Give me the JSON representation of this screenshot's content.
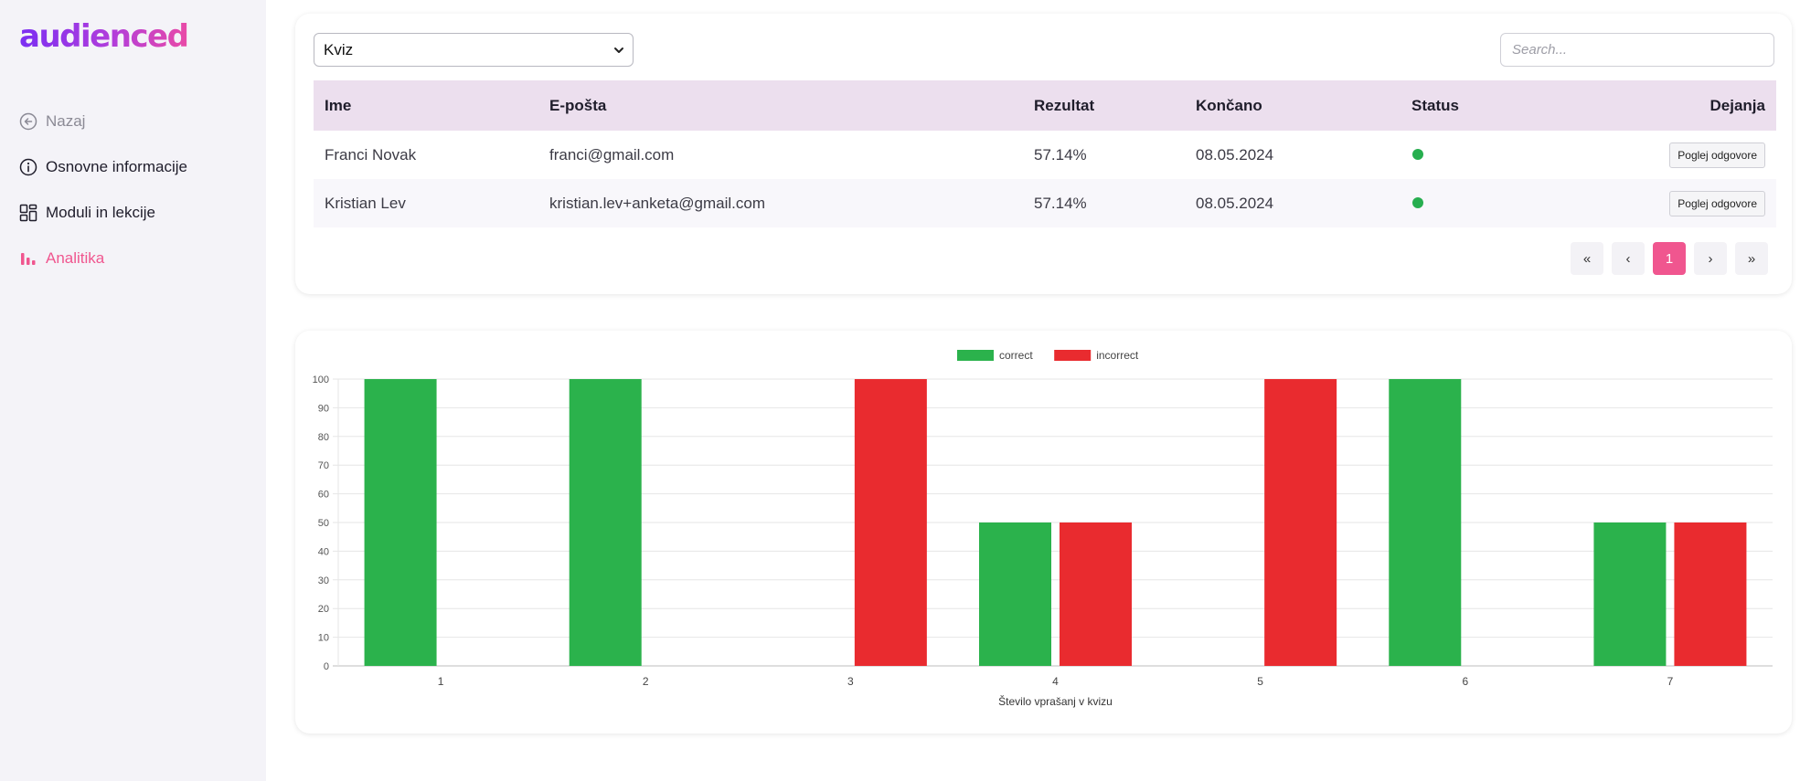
{
  "brand": {
    "logo_text": "audienced"
  },
  "sidebar": {
    "items": [
      {
        "label": "Nazaj",
        "icon": "arrow-left-circle-icon"
      },
      {
        "label": "Osnovne informacije",
        "icon": "info-circle-icon"
      },
      {
        "label": "Moduli in lekcije",
        "icon": "layout-grid-icon"
      },
      {
        "label": "Analitika",
        "icon": "bar-chart-icon"
      }
    ],
    "active_index": 3
  },
  "filters": {
    "selected": "Kviz",
    "search_placeholder": "Search..."
  },
  "table": {
    "headers": [
      "Ime",
      "E-pošta",
      "Rezultat",
      "Končano",
      "Status",
      "Dejanja"
    ],
    "rows": [
      {
        "name": "Franci Novak",
        "email": "franci@gmail.com",
        "score": "57.14%",
        "finished": "08.05.2024",
        "status": "done",
        "action": "Poglej odgovore"
      },
      {
        "name": "Kristian Lev",
        "email": "kristian.lev+anketa@gmail.com",
        "score": "57.14%",
        "finished": "08.05.2024",
        "status": "done",
        "action": "Poglej odgovore"
      }
    ]
  },
  "pagination": {
    "first": "«",
    "prev": "‹",
    "current": "1",
    "next": "›",
    "last": "»"
  },
  "colors": {
    "accent": "#f0568f",
    "correct": "#2bb24c",
    "incorrect": "#e92b2f",
    "status_ok": "#27ae4f"
  },
  "chart_data": {
    "type": "bar",
    "categories": [
      "1",
      "2",
      "3",
      "4",
      "5",
      "6",
      "7"
    ],
    "series": [
      {
        "name": "correct",
        "color": "#2bb24c",
        "values": [
          100,
          100,
          0,
          50,
          0,
          100,
          50
        ]
      },
      {
        "name": "incorrect",
        "color": "#e92b2f",
        "values": [
          0,
          0,
          100,
          50,
          100,
          0,
          50
        ]
      }
    ],
    "ylim": [
      0,
      100
    ],
    "yticks": [
      0,
      10,
      20,
      30,
      40,
      50,
      60,
      70,
      80,
      90,
      100
    ],
    "xlabel": "Število vprašanj v kvizu",
    "ylabel": "",
    "legend_position": "top",
    "grid": true
  }
}
